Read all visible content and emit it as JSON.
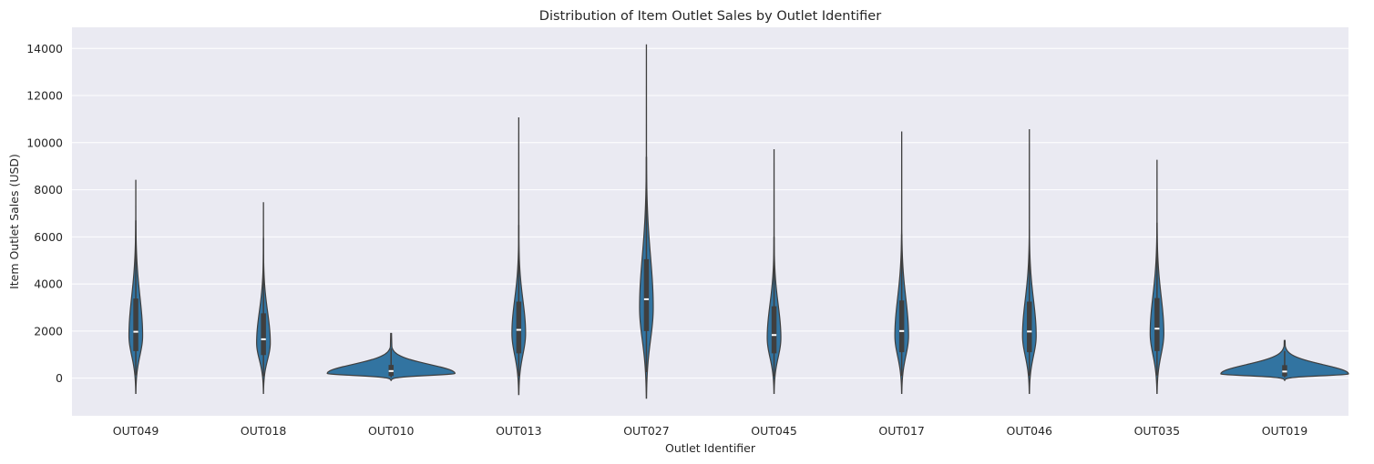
{
  "chart_data": {
    "type": "violin",
    "title": "Distribution of Item Outlet Sales by Outlet Identifier",
    "xlabel": "Outlet Identifier",
    "ylabel": "Item Outlet Sales (USD)",
    "ylim": [
      -1600,
      14900
    ],
    "yticks": [
      0,
      2000,
      4000,
      6000,
      8000,
      10000,
      12000,
      14000
    ],
    "grid": true,
    "color": "#3274a1",
    "categories": [
      "OUT049",
      "OUT018",
      "OUT010",
      "OUT013",
      "OUT027",
      "OUT045",
      "OUT017",
      "OUT046",
      "OUT035",
      "OUT019"
    ],
    "series": [
      {
        "name": "OUT049",
        "min": -650,
        "q1": 1150,
        "median": 1970,
        "q3": 3380,
        "whisker_low": 120,
        "whisker_high": 6700,
        "max": 8400,
        "mode": 1800
      },
      {
        "name": "OUT018",
        "min": -650,
        "q1": 980,
        "median": 1650,
        "q3": 2750,
        "whisker_low": 70,
        "whisker_high": 5950,
        "max": 7450,
        "mode": 1500
      },
      {
        "name": "OUT010",
        "min": -100,
        "q1": 90,
        "median": 300,
        "q3": 560,
        "whisker_low": 30,
        "whisker_high": 1250,
        "max": 1900,
        "mode": 200
      },
      {
        "name": "OUT013",
        "min": -700,
        "q1": 1050,
        "median": 2050,
        "q3": 3250,
        "whisker_low": 80,
        "whisker_high": 6500,
        "max": 11050,
        "mode": 1900
      },
      {
        "name": "OUT027",
        "min": -850,
        "q1": 2000,
        "median": 3350,
        "q3": 5050,
        "whisker_low": 250,
        "whisker_high": 9400,
        "max": 14150,
        "mode": 3000
      },
      {
        "name": "OUT045",
        "min": -650,
        "q1": 1050,
        "median": 1830,
        "q3": 3050,
        "whisker_low": 70,
        "whisker_high": 6000,
        "max": 9700,
        "mode": 1700
      },
      {
        "name": "OUT017",
        "min": -650,
        "q1": 1100,
        "median": 2000,
        "q3": 3300,
        "whisker_low": 90,
        "whisker_high": 6100,
        "max": 10450,
        "mode": 1800
      },
      {
        "name": "OUT046",
        "min": -650,
        "q1": 1100,
        "median": 1980,
        "q3": 3250,
        "whisker_low": 90,
        "whisker_high": 6300,
        "max": 10550,
        "mode": 1800
      },
      {
        "name": "OUT035",
        "min": -650,
        "q1": 1150,
        "median": 2100,
        "q3": 3400,
        "whisker_low": 110,
        "whisker_high": 6600,
        "max": 9250,
        "mode": 1900
      },
      {
        "name": "OUT019",
        "min": -100,
        "q1": 80,
        "median": 280,
        "q3": 550,
        "whisker_low": 25,
        "whisker_high": 1150,
        "max": 1600,
        "mode": 180
      }
    ]
  }
}
